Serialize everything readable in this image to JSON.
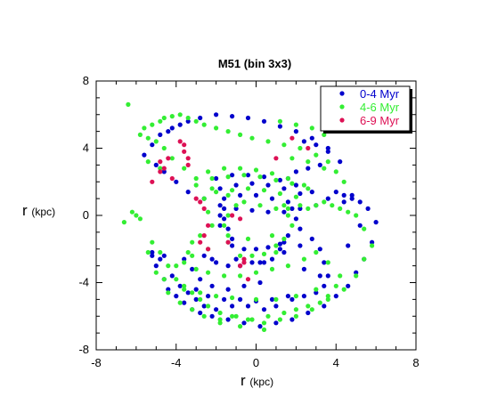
{
  "chart_data": {
    "type": "scatter",
    "title": "M51 (bin 3x3)",
    "xlabel": "r",
    "xlabel_unit": "(kpc)",
    "ylabel": "r",
    "ylabel_unit": "(kpc)",
    "xlim": [
      -8,
      8
    ],
    "ylim": [
      -8,
      8
    ],
    "x_ticks": [
      "-8",
      "-4",
      "0",
      "4",
      "8"
    ],
    "y_ticks": [
      "8",
      "4",
      "0",
      "-4",
      "-8"
    ],
    "grid": false,
    "legend_position": "top-right",
    "series": [
      {
        "name": "0-4 Myr",
        "color": "#0000cc",
        "x": [
          -2.0,
          -1.2,
          -0.4,
          0.4,
          1.2,
          2.0,
          2.8,
          -1.8,
          -1.0,
          -0.2,
          0.6,
          1.4,
          2.2,
          -1.6,
          -0.8,
          0.0,
          0.8,
          1.6,
          -1.6,
          -1.6,
          -1.4,
          -1.2,
          -1.8,
          -1.8,
          1.8,
          2.0,
          2.2,
          1.6,
          1.4,
          1.2,
          -1.2,
          -0.6,
          0.0,
          0.6,
          1.2,
          -1.0,
          -0.2,
          0.4,
          -2.6,
          -2.2,
          -2.0,
          -1.4,
          -0.8,
          0.2,
          0.8,
          1.4,
          2.2,
          2.8,
          3.2,
          3.4,
          3.6,
          3.4,
          3.0,
          2.4,
          1.8,
          1.0,
          0.4,
          -0.4,
          -1.2,
          -2.0,
          -2.6,
          -3.0,
          -3.4,
          -3.8,
          -4.2,
          -4.8,
          -5.2,
          -5.0,
          -4.6,
          -4.4,
          -4.0,
          -3.6,
          -3.2,
          -2.8,
          -2.2,
          -1.4,
          -0.6,
          0.2,
          1.0,
          1.8,
          2.6,
          3.4,
          4.0,
          4.6,
          5.0,
          5.4,
          5.8,
          6.0,
          5.6,
          5.2,
          4.8,
          4.4,
          4.0,
          3.6,
          3.0,
          2.2,
          1.4,
          0.6,
          -0.2,
          -1.0,
          -1.8,
          -2.6,
          -3.4,
          -4.0,
          -4.6,
          -5.0,
          -5.6,
          -5.2,
          -4.8,
          -4.4,
          -4.2,
          -3.8,
          -3.4,
          -2.8,
          -2.0,
          -1.2,
          -0.4,
          0.4,
          1.2,
          2.0,
          2.8,
          3.6,
          4.2,
          2.4,
          3.0,
          3.6,
          3.2,
          2.6,
          2.0,
          1.6,
          2.4,
          3.2,
          0.2,
          -0.6,
          -1.4,
          -2.2,
          -2.8,
          -3.2,
          -3.6,
          -4.6,
          -5.2,
          -3.0,
          -2.4,
          -1.6,
          -0.8,
          0.0,
          0.8,
          1.6,
          4.4,
          4.8,
          5.2,
          4.6
        ],
        "y": [
          2.2,
          2.4,
          2.4,
          2.3,
          2.1,
          1.8,
          1.4,
          1.6,
          1.8,
          1.9,
          1.8,
          1.6,
          1.3,
          1.0,
          1.2,
          1.2,
          1.0,
          0.8,
          0.4,
          -0.2,
          -0.8,
          -1.4,
          0.0,
          -0.6,
          0.4,
          -0.2,
          -0.8,
          -1.2,
          -1.6,
          -2.0,
          -1.8,
          -2.0,
          -2.0,
          -1.9,
          -1.7,
          -2.6,
          -2.8,
          -2.8,
          -2.4,
          -2.6,
          -2.8,
          -3.0,
          -3.0,
          -2.8,
          -2.6,
          -2.2,
          -1.8,
          -1.4,
          -2.0,
          -2.8,
          -3.6,
          -4.2,
          -4.6,
          -4.8,
          -5.0,
          -5.4,
          -5.6,
          -5.4,
          -5.4,
          -5.6,
          -5.4,
          -5.0,
          -4.6,
          -4.2,
          -3.6,
          -2.6,
          -2.4,
          -3.0,
          -3.8,
          -4.4,
          -4.8,
          -5.2,
          -5.6,
          -5.8,
          -6.0,
          -6.2,
          -6.4,
          -6.6,
          -6.4,
          -6.2,
          -5.8,
          -5.4,
          -4.8,
          -4.2,
          -3.4,
          -2.6,
          -1.6,
          -0.4,
          0.4,
          0.8,
          1.0,
          1.2,
          1.4,
          1.0,
          0.6,
          0.4,
          0.2,
          0.2,
          0.3,
          0.4,
          0.6,
          1.0,
          1.4,
          2.0,
          2.6,
          3.0,
          3.6,
          4.2,
          4.8,
          5.0,
          5.2,
          5.4,
          5.6,
          5.8,
          6.0,
          5.9,
          5.8,
          5.6,
          5.3,
          5.0,
          4.6,
          4.0,
          3.2,
          4.4,
          4.2,
          3.8,
          3.0,
          2.8,
          2.6,
          2.2,
          -3.2,
          -3.6,
          -4.0,
          -4.2,
          -4.4,
          -4.2,
          -3.8,
          -3.2,
          -2.6,
          -2.4,
          -2.2,
          -4.4,
          -4.8,
          -5.0,
          -5.0,
          -5.1,
          -5.0,
          -4.8,
          0.8,
          1.2,
          -0.6,
          -1.8
        ],
        "radius": 2.6
      },
      {
        "name": "4-6 Myr",
        "color": "#33ee33",
        "x": [
          -2.4,
          -1.6,
          -0.8,
          0.0,
          0.8,
          1.6,
          2.4,
          -2.2,
          -1.4,
          -0.6,
          0.2,
          1.0,
          1.8,
          2.6,
          -2.0,
          -1.2,
          -0.4,
          0.4,
          1.2,
          2.0,
          -1.0,
          -1.4,
          -1.6,
          -1.4,
          1.4,
          1.6,
          1.8,
          1.4,
          1.0,
          -0.8,
          -0.2,
          0.4,
          1.0,
          -3.0,
          -2.6,
          -2.4,
          -2.2,
          -2.8,
          -3.2,
          -3.4,
          -3.6,
          -3.0,
          -2.4,
          -1.6,
          -0.8,
          0.0,
          0.8,
          1.6,
          2.4,
          3.0,
          3.6,
          4.2,
          4.0,
          3.6,
          3.2,
          2.6,
          2.0,
          1.4,
          0.6,
          -0.2,
          -1.0,
          -1.8,
          -2.6,
          -3.2,
          -3.8,
          -4.4,
          -5.0,
          -5.4,
          -5.2,
          -4.8,
          -4.4,
          -4.0,
          -3.6,
          -3.2,
          -2.8,
          -2.4,
          -1.8,
          -1.2,
          -0.4,
          0.4,
          1.2,
          2.0,
          2.8,
          3.6,
          4.4,
          5.0,
          5.4,
          5.8,
          5.4,
          5.0,
          4.6,
          4.2,
          3.8,
          3.4,
          3.0,
          2.6,
          2.2,
          1.6,
          1.0,
          0.2,
          -0.6,
          -1.4,
          -2.2,
          -3.0,
          -3.6,
          -4.2,
          -4.6,
          -5.0,
          -5.4,
          -5.8,
          -5.6,
          -5.2,
          -4.8,
          -4.6,
          -4.2,
          -3.8,
          -3.4,
          -3.0,
          -2.6,
          -2.0,
          -1.4,
          -0.8,
          -0.2,
          0.6,
          1.4,
          2.2,
          3.0,
          3.6,
          4.0,
          4.4,
          -6.0,
          -6.6,
          -5.4,
          -4.8,
          1.2,
          2.0,
          2.8,
          3.4,
          1.8,
          2.6,
          3.4,
          0.8,
          -0.4,
          -1.4,
          -2.4,
          -3.2,
          -4.0,
          -4.6,
          -3.6,
          -2.8,
          -2.0,
          -1.2,
          0.0,
          1.0,
          2.0,
          3.0,
          0.4,
          -0.8,
          -1.8,
          -5.8,
          -6.2,
          -6.4
        ],
        "y": [
          2.6,
          2.8,
          2.8,
          2.7,
          2.5,
          2.2,
          1.8,
          2.2,
          2.3,
          2.4,
          2.3,
          2.1,
          1.9,
          1.6,
          1.4,
          1.5,
          1.6,
          1.5,
          1.3,
          1.1,
          0.6,
          0.0,
          -0.6,
          -1.2,
          0.6,
          0.0,
          -0.6,
          -1.4,
          -1.8,
          -2.4,
          -2.4,
          -2.3,
          -2.2,
          1.8,
          1.0,
          0.2,
          -0.6,
          -1.2,
          -1.6,
          -2.2,
          -2.8,
          -3.2,
          -3.4,
          -3.6,
          -3.6,
          -3.4,
          -3.2,
          -3.0,
          -2.6,
          -2.2,
          -2.8,
          -3.6,
          -4.2,
          -4.8,
          -5.2,
          -5.4,
          -5.6,
          -5.8,
          -6.0,
          -6.2,
          -6.0,
          -6.2,
          -6.0,
          -5.6,
          -5.2,
          -4.6,
          -3.4,
          -2.2,
          -1.6,
          -2.2,
          -3.0,
          -3.8,
          -4.2,
          -4.6,
          -5.0,
          -5.4,
          -5.8,
          -6.0,
          -6.2,
          -6.4,
          -6.2,
          -6.0,
          -5.6,
          -5.0,
          -4.4,
          -3.6,
          -2.6,
          -1.8,
          -0.8,
          0.0,
          0.2,
          0.4,
          0.6,
          0.8,
          0.6,
          0.4,
          0.6,
          0.4,
          0.4,
          0.6,
          0.8,
          1.2,
          1.6,
          2.2,
          2.8,
          3.4,
          4.0,
          4.4,
          4.6,
          4.8,
          5.2,
          5.4,
          5.6,
          5.8,
          5.9,
          6.0,
          5.8,
          5.6,
          5.4,
          5.2,
          5.0,
          4.8,
          4.6,
          4.4,
          4.2,
          4.0,
          3.6,
          3.2,
          2.6,
          2.0,
          0.0,
          -0.4,
          3.2,
          2.8,
          5.6,
          5.4,
          5.2,
          4.8,
          3.4,
          3.2,
          2.8,
          -1.2,
          -1.4,
          -1.6,
          -2.0,
          -2.4,
          -3.0,
          -3.8,
          -4.4,
          -4.6,
          -4.8,
          -4.9,
          -5.0,
          -5.0,
          -4.8,
          -4.4,
          -6.8,
          -6.6,
          -6.4,
          -0.2,
          0.2,
          6.6
        ],
        "radius": 2.6
      },
      {
        "name": "6-9 Myr",
        "color": "#dd1155",
        "x": [
          -3.8,
          -3.6,
          -3.6,
          -3.4,
          -3.4,
          -4.4,
          -4.6,
          -4.8,
          -4.8,
          -4.2,
          -5.2,
          -3.0,
          -2.8,
          -2.6,
          -2.4,
          -1.2,
          -0.8,
          -1.4,
          -2.6,
          -2.8,
          -2.4,
          -0.8,
          -0.6,
          -0.6,
          -0.4,
          1.8,
          2.6,
          1.0
        ],
        "y": [
          4.4,
          4.2,
          3.8,
          3.4,
          3.0,
          3.4,
          2.8,
          3.2,
          2.6,
          2.2,
          2.0,
          1.0,
          0.8,
          0.4,
          -0.6,
          0.0,
          -0.2,
          -1.6,
          -1.2,
          -1.6,
          -2.0,
          -3.0,
          -2.8,
          -2.6,
          -3.8,
          4.6,
          4.0,
          3.4
        ],
        "radius": 2.6
      }
    ]
  }
}
